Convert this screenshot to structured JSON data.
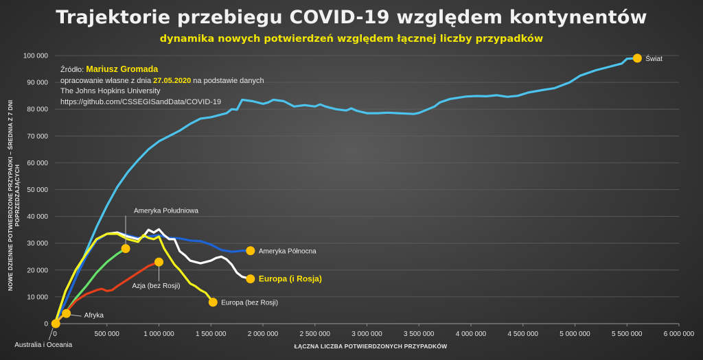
{
  "title": "Trajektorie przebiegu COVID-19 względem kontynentów",
  "subtitle": "dynamika nowych potwierdzeń względem łącznej liczby przypadków",
  "source": {
    "label": "Źródło:",
    "author": "Mariusz Gromada",
    "line2_pre": "opracowanie własne z dnia",
    "date": "27.05.2020",
    "line2_post": "na podstawie danych",
    "line3": "The Johns Hopkins University",
    "line4": "https://github.com/CSSEGISandData/COVID-19"
  },
  "colors": {
    "world": "#4cc3ec",
    "north_america": "#1e63d6",
    "south_america": "#66e26a",
    "europe_with_russia": "#ffffff",
    "europe_without_russia": "#f2f21a",
    "asia": "#e6401a",
    "africa": "#f2b233",
    "oceania": "#f2b233",
    "endpoint_marker": "#ffc000",
    "axis_text": "#e6e6e6",
    "gridline": "#5f5f5f"
  },
  "chart_data": {
    "type": "line",
    "xlabel": "ŁĄCZNA LICZBA POTWIERDZONYCH PRZYPADKÓW",
    "ylabel": "NOWE DZIENNE POTWIERDZONE PRZYPADKI – ŚREDNIA Z 7 DNI POPRZEDZAJĄCYCH",
    "xlim": [
      0,
      6000000
    ],
    "ylim": [
      0,
      100000
    ],
    "x_ticks": [
      "0",
      "500 000",
      "1 000 000",
      "1 500 000",
      "2 000 000",
      "2 500 000",
      "3 000 000",
      "3 500 000",
      "4 000 000",
      "4 500 000",
      "5 000 000",
      "5 500 000",
      "6 000 000"
    ],
    "y_ticks": [
      "0",
      "10 000",
      "20 000",
      "30 000",
      "40 000",
      "50 000",
      "60 000",
      "70 000",
      "80 000",
      "90 000",
      "100 000"
    ],
    "grid": "horizontal",
    "series": [
      {
        "name": "Świat",
        "color_key": "world",
        "label_side": "right",
        "x": [
          0,
          100000,
          200000,
          300000,
          400000,
          500000,
          600000,
          700000,
          800000,
          900000,
          1000000,
          1100000,
          1200000,
          1300000,
          1400000,
          1500000,
          1600000,
          1650000,
          1700000,
          1750000,
          1800000,
          1900000,
          2000000,
          2050000,
          2100000,
          2200000,
          2300000,
          2400000,
          2500000,
          2550000,
          2600000,
          2700000,
          2800000,
          2850000,
          2900000,
          3000000,
          3100000,
          3200000,
          3300000,
          3400000,
          3450000,
          3500000,
          3650000,
          3700000,
          3800000,
          3950000,
          4050000,
          4150000,
          4250000,
          4350000,
          4450000,
          4550000,
          4700000,
          4800000,
          4950000,
          5050000,
          5200000,
          5350000,
          5450000,
          5500000,
          5600000
        ],
        "y": [
          0,
          8000,
          17000,
          27000,
          36000,
          44000,
          51000,
          56500,
          61000,
          65000,
          68000,
          70000,
          72000,
          74500,
          76500,
          77000,
          78000,
          78500,
          80000,
          79800,
          83500,
          83000,
          82000,
          82500,
          83500,
          83000,
          81000,
          81500,
          81000,
          81800,
          81000,
          80000,
          79500,
          80300,
          79400,
          78500,
          78500,
          78700,
          78500,
          78300,
          78200,
          78600,
          81000,
          82500,
          83800,
          84700,
          84900,
          84800,
          85200,
          84600,
          85000,
          86200,
          87200,
          87800,
          90000,
          92500,
          94500,
          96000,
          97000,
          98800,
          99000
        ]
      },
      {
        "name": "Ameryka Północna",
        "color_key": "north_america",
        "label_side": "right",
        "x": [
          0,
          100000,
          200000,
          300000,
          400000,
          500000,
          600000,
          700000,
          800000,
          900000,
          1000000,
          1100000,
          1200000,
          1300000,
          1400000,
          1500000,
          1600000,
          1700000,
          1800000,
          1880000
        ],
        "y": [
          0,
          8000,
          17000,
          25000,
          31000,
          33500,
          34000,
          33000,
          32000,
          32500,
          33000,
          32000,
          31800,
          31000,
          30800,
          29500,
          27500,
          26800,
          27200,
          27200
        ]
      },
      {
        "name": "Ameryka Południowa",
        "color_key": "south_america",
        "label_side": "above",
        "x": [
          0,
          100000,
          200000,
          300000,
          400000,
          500000,
          600000,
          680000
        ],
        "y": [
          0,
          4000,
          9500,
          14000,
          19000,
          23000,
          26000,
          28000
        ]
      },
      {
        "name": "Europa (i Rosja)",
        "color_key": "europe_with_russia",
        "label_side": "right",
        "label_bold": true,
        "x": [
          0,
          100000,
          200000,
          300000,
          400000,
          500000,
          600000,
          700000,
          800000,
          850000,
          900000,
          950000,
          1000000,
          1050000,
          1100000,
          1150000,
          1200000,
          1250000,
          1300000,
          1350000,
          1400000,
          1450000,
          1500000,
          1550000,
          1600000,
          1650000,
          1700000,
          1750000,
          1800000,
          1880000
        ],
        "y": [
          0,
          12000,
          20000,
          26000,
          31500,
          33500,
          34000,
          32500,
          31500,
          32500,
          35000,
          34000,
          35200,
          33000,
          31500,
          31500,
          27000,
          25500,
          23500,
          23000,
          22500,
          23000,
          23500,
          24500,
          25000,
          24000,
          22000,
          19000,
          17500,
          16700
        ]
      },
      {
        "name": "Europa (bez Rosji)",
        "color_key": "europe_without_russia",
        "label_side": "right",
        "x": [
          0,
          100000,
          200000,
          300000,
          400000,
          500000,
          600000,
          650000,
          700000,
          750000,
          800000,
          850000,
          900000,
          950000,
          1000000,
          1050000,
          1100000,
          1150000,
          1200000,
          1250000,
          1300000,
          1350000,
          1400000,
          1450000,
          1500000,
          1520000
        ],
        "y": [
          0,
          12000,
          20000,
          26000,
          31500,
          33500,
          33500,
          32500,
          31500,
          31000,
          30500,
          33000,
          32000,
          31500,
          32500,
          28000,
          25000,
          22000,
          20000,
          17500,
          15000,
          14000,
          12500,
          11500,
          9000,
          8000
        ]
      },
      {
        "name": "Azja (bez Rosji)",
        "color_key": "asia",
        "label_side": "below",
        "x": [
          0,
          100000,
          200000,
          300000,
          400000,
          450000,
          500000,
          550000,
          600000,
          700000,
          800000,
          900000,
          1000000
        ],
        "y": [
          0,
          4000,
          8500,
          11000,
          12500,
          13000,
          12200,
          12500,
          14000,
          16500,
          19000,
          21500,
          23000
        ]
      },
      {
        "name": "Afryka",
        "color_key": "africa",
        "label_side": "right",
        "x": [
          0,
          60000,
          110000
        ],
        "y": [
          0,
          2500,
          3800
        ]
      },
      {
        "name": "Australia i Oceania",
        "color_key": "oceania",
        "label_side": "below",
        "x": [
          0,
          8000
        ],
        "y": [
          0,
          0
        ]
      }
    ]
  }
}
